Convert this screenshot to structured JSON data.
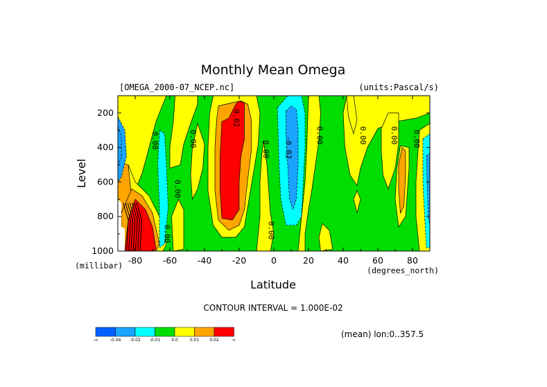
{
  "chart_data": {
    "type": "contour",
    "title": "Monthly Mean Omega",
    "dataset_label": "[OMEGA_2000-07_NCEP.nc]",
    "units_label": "(units:Pascal/s)",
    "xlabel": "Latitude",
    "xlabel_units": "(degrees_north)",
    "ylabel": "Level",
    "ylabel_units": "(millibar)",
    "xlim": [
      -90,
      90
    ],
    "ylim": [
      1000,
      100
    ],
    "x_ticks": [
      -80,
      -60,
      -40,
      -20,
      0,
      20,
      40,
      60,
      80
    ],
    "y_ticks": [
      200,
      400,
      600,
      800,
      1000
    ],
    "contour_interval_text": "CONTOUR INTERVAL = 1.000E-02",
    "averaging_note": "(mean) lon:0..357.5",
    "contour_labels": [
      {
        "text": "0.00",
        "lat": -70,
        "lev": 360
      },
      {
        "text": "0.00",
        "lat": -48,
        "lev": 350
      },
      {
        "text": "0.02",
        "lat": -23,
        "lev": 230
      },
      {
        "text": "0.00",
        "lat": -6,
        "lev": 410
      },
      {
        "text": "-0.02",
        "lat": 7,
        "lev": 400
      },
      {
        "text": "0.00",
        "lat": 25,
        "lev": 330
      },
      {
        "text": "0.00",
        "lat": 50,
        "lev": 330
      },
      {
        "text": "0.00",
        "lat": 68,
        "lev": 330
      },
      {
        "text": "0.00",
        "lat": 81,
        "lev": 350
      },
      {
        "text": "0.00",
        "lat": -57,
        "lev": 640
      },
      {
        "text": "0.00",
        "lat": -3,
        "lev": 880
      },
      {
        "text": "0.00",
        "lat": -63,
        "lev": 900
      }
    ],
    "colorbar": {
      "colors": [
        "#0060ff",
        "#1aa3ff",
        "#00ffff",
        "#00dd00",
        "#ffff00",
        "#ffa500",
        "#ff0000"
      ],
      "labels": [
        "-∞",
        "-0.04",
        "-0.02",
        "-0.01",
        "0.0",
        "0.01",
        "0.02",
        "∞"
      ]
    },
    "regions": [
      {
        "level": "green",
        "poly": [
          [
            -90,
            100
          ],
          [
            90,
            100
          ],
          [
            90,
            1000
          ],
          [
            -90,
            1000
          ]
        ]
      },
      {
        "level": "yellow",
        "poly": [
          [
            -90,
            100
          ],
          [
            -62,
            100
          ],
          [
            -68,
            250
          ],
          [
            -72,
            400
          ],
          [
            -76,
            550
          ],
          [
            -82,
            700
          ],
          [
            -90,
            800
          ]
        ]
      },
      {
        "level": "orange",
        "poly": [
          [
            -90,
            480
          ],
          [
            -84,
            500
          ],
          [
            -81,
            620
          ],
          [
            -86,
            760
          ],
          [
            -90,
            780
          ]
        ]
      },
      {
        "level": "blue",
        "poly": [
          [
            -90,
            220
          ],
          [
            -86,
            300
          ],
          [
            -85,
            450
          ],
          [
            -88,
            570
          ],
          [
            -90,
            600
          ]
        ]
      },
      {
        "level": "yellow",
        "poly": [
          [
            -84,
            500
          ],
          [
            -80,
            600
          ],
          [
            -72,
            680
          ],
          [
            -66,
            800
          ],
          [
            -62,
            960
          ],
          [
            -64,
            1000
          ],
          [
            -90,
            1000
          ],
          [
            -90,
            800
          ],
          [
            -82,
            700
          ]
        ]
      },
      {
        "level": "orange",
        "poly": [
          [
            -82,
            640
          ],
          [
            -76,
            680
          ],
          [
            -70,
            780
          ],
          [
            -66,
            960
          ],
          [
            -68,
            1000
          ],
          [
            -88,
            1000
          ],
          [
            -88,
            780
          ]
        ]
      },
      {
        "level": "red",
        "poly": [
          [
            -80,
            700
          ],
          [
            -74,
            760
          ],
          [
            -70,
            860
          ],
          [
            -68,
            990
          ],
          [
            -70,
            1000
          ],
          [
            -86,
            1000
          ],
          [
            -84,
            820
          ]
        ]
      },
      {
        "level": "cyan",
        "poly": [
          [
            -66,
            300
          ],
          [
            -63,
            320
          ],
          [
            -62,
            500
          ],
          [
            -61,
            750
          ],
          [
            -63,
            960
          ],
          [
            -66,
            980
          ],
          [
            -66,
            750
          ],
          [
            -67,
            500
          ]
        ]
      },
      {
        "level": "yellow",
        "poly": [
          [
            -55,
            700
          ],
          [
            -52,
            760
          ],
          [
            -52,
            990
          ],
          [
            -58,
            1000
          ],
          [
            -59,
            800
          ]
        ]
      },
      {
        "level": "blue",
        "poly": [
          [
            -90,
            280
          ],
          [
            -88,
            330
          ],
          [
            -88,
            460
          ],
          [
            -90,
            500
          ]
        ]
      },
      {
        "level": "yellow",
        "poly": [
          [
            -57,
            100
          ],
          [
            -44,
            100
          ],
          [
            -44,
            150
          ],
          [
            -48,
            260
          ],
          [
            -52,
            380
          ],
          [
            -54,
            500
          ],
          [
            -60,
            520
          ],
          [
            -60,
            400
          ],
          [
            -58,
            250
          ]
        ]
      },
      {
        "level": "yellow",
        "poly": [
          [
            -44,
            260
          ],
          [
            -40,
            380
          ],
          [
            -41,
            520
          ],
          [
            -44,
            640
          ],
          [
            -47,
            700
          ],
          [
            -48,
            560
          ],
          [
            -47,
            400
          ]
        ]
      },
      {
        "level": "yellow",
        "poly": [
          [
            -35,
            100
          ],
          [
            -10,
            100
          ],
          [
            -8,
            200
          ],
          [
            -9,
            380
          ],
          [
            -12,
            560
          ],
          [
            -15,
            740
          ],
          [
            -17,
            860
          ],
          [
            -22,
            920
          ],
          [
            -30,
            920
          ],
          [
            -35,
            850
          ],
          [
            -38,
            650
          ],
          [
            -38,
            400
          ],
          [
            -37,
            200
          ]
        ]
      },
      {
        "level": "orange",
        "poly": [
          [
            -32,
            160
          ],
          [
            -24,
            140
          ],
          [
            -19,
            130
          ],
          [
            -15,
            150
          ],
          [
            -13,
            240
          ],
          [
            -13,
            420
          ],
          [
            -15,
            580
          ],
          [
            -17,
            760
          ],
          [
            -20,
            850
          ],
          [
            -26,
            880
          ],
          [
            -32,
            820
          ],
          [
            -34,
            650
          ],
          [
            -34,
            400
          ],
          [
            -33,
            240
          ]
        ]
      },
      {
        "level": "red",
        "poly": [
          [
            -30,
            250
          ],
          [
            -26,
            230
          ],
          [
            -24,
            190
          ],
          [
            -22,
            150
          ],
          [
            -20,
            130
          ],
          [
            -17,
            140
          ],
          [
            -17,
            230
          ],
          [
            -17,
            350
          ],
          [
            -19,
            450
          ],
          [
            -20,
            600
          ],
          [
            -20,
            760
          ],
          [
            -24,
            820
          ],
          [
            -30,
            810
          ],
          [
            -31,
            650
          ],
          [
            -31,
            450
          ]
        ]
      },
      {
        "level": "yellow",
        "poly": [
          [
            -6,
            360
          ],
          [
            -4,
            500
          ],
          [
            -3,
            640
          ],
          [
            -2,
            780
          ],
          [
            0,
            900
          ],
          [
            -2,
            1000
          ],
          [
            -10,
            1000
          ],
          [
            -8,
            800
          ],
          [
            -8,
            600
          ],
          [
            -7,
            450
          ]
        ]
      },
      {
        "level": "cyan",
        "poly": [
          [
            2,
            170
          ],
          [
            8,
            100
          ],
          [
            16,
            100
          ],
          [
            18,
            200
          ],
          [
            18,
            400
          ],
          [
            17,
            600
          ],
          [
            16,
            800
          ],
          [
            13,
            850
          ],
          [
            7,
            850
          ],
          [
            4,
            700
          ],
          [
            3,
            500
          ]
        ]
      },
      {
        "level": "blue",
        "poly": [
          [
            7,
            190
          ],
          [
            10,
            160
          ],
          [
            13,
            180
          ],
          [
            14,
            300
          ],
          [
            14,
            500
          ],
          [
            13,
            700
          ],
          [
            11,
            760
          ],
          [
            9,
            700
          ],
          [
            8,
            500
          ],
          [
            7,
            320
          ]
        ]
      },
      {
        "level": "yellow",
        "poly": [
          [
            20,
            100
          ],
          [
            26,
            100
          ],
          [
            27,
            200
          ],
          [
            26,
            360
          ],
          [
            24,
            500
          ],
          [
            22,
            640
          ],
          [
            20,
            760
          ],
          [
            18,
            900
          ],
          [
            18,
            1000
          ],
          [
            14,
            1000
          ],
          [
            16,
            800
          ],
          [
            18,
            600
          ],
          [
            19,
            400
          ]
        ]
      },
      {
        "level": "yellow",
        "poly": [
          [
            42,
            100
          ],
          [
            90,
            100
          ],
          [
            90,
            200
          ],
          [
            82,
            230
          ],
          [
            70,
            250
          ],
          [
            60,
            290
          ],
          [
            54,
            400
          ],
          [
            50,
            520
          ],
          [
            48,
            620
          ],
          [
            44,
            560
          ],
          [
            41,
            400
          ],
          [
            40,
            200
          ]
        ]
      },
      {
        "level": "yellow",
        "poly": [
          [
            62,
            290
          ],
          [
            66,
            200
          ],
          [
            72,
            200
          ],
          [
            72,
            380
          ],
          [
            70,
            520
          ],
          [
            66,
            640
          ],
          [
            63,
            560
          ],
          [
            62,
            420
          ]
        ]
      },
      {
        "level": "yellow",
        "poly": [
          [
            73,
            390
          ],
          [
            78,
            400
          ],
          [
            78,
            520
          ],
          [
            76,
            800
          ],
          [
            72,
            860
          ],
          [
            70,
            700
          ],
          [
            71,
            520
          ]
        ]
      },
      {
        "level": "orange",
        "poly": [
          [
            74,
            400
          ],
          [
            76,
            420
          ],
          [
            76,
            560
          ],
          [
            75,
            740
          ],
          [
            73,
            780
          ],
          [
            72,
            640
          ],
          [
            72,
            500
          ]
        ]
      },
      {
        "level": "yellow",
        "poly": [
          [
            84,
            300
          ],
          [
            90,
            260
          ],
          [
            90,
            1000
          ],
          [
            84,
            1000
          ],
          [
            82,
            800
          ],
          [
            82,
            600
          ]
        ]
      },
      {
        "level": "cyan",
        "poly": [
          [
            86,
            350
          ],
          [
            90,
            320
          ],
          [
            90,
            980
          ],
          [
            88,
            980
          ],
          [
            87,
            800
          ],
          [
            86,
            600
          ]
        ]
      },
      {
        "level": "blue",
        "poly": [
          [
            88,
            450
          ],
          [
            90,
            430
          ],
          [
            90,
            850
          ],
          [
            89,
            800
          ]
        ]
      },
      {
        "level": "yellow",
        "poly": [
          [
            42,
            100
          ],
          [
            46,
            100
          ],
          [
            48,
            240
          ],
          [
            46,
            320
          ],
          [
            43,
            220
          ]
        ]
      },
      {
        "level": "yellow",
        "poly": [
          [
            28,
            840
          ],
          [
            32,
            880
          ],
          [
            34,
            990
          ],
          [
            27,
            1000
          ],
          [
            26,
            920
          ]
        ]
      },
      {
        "level": "yellow",
        "poly": [
          [
            48,
            650
          ],
          [
            50,
            700
          ],
          [
            48,
            780
          ],
          [
            46,
            700
          ]
        ]
      }
    ]
  }
}
